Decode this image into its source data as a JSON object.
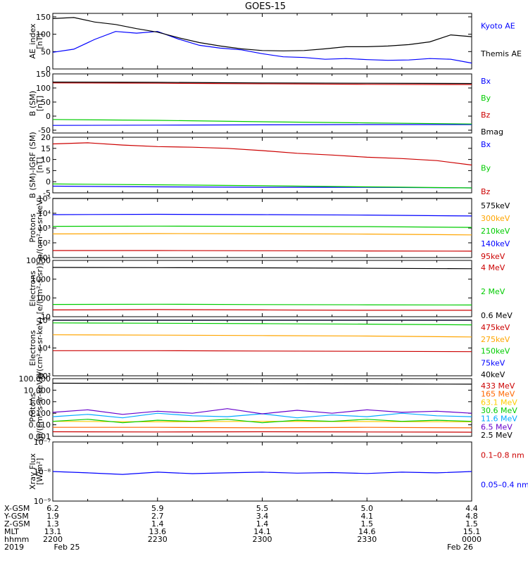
{
  "title": "GOES-15",
  "chart_data": [
    {
      "type": "line",
      "ylabel": [
        "AE_index",
        "[nT]"
      ],
      "scale": "linear",
      "ylim": [
        0,
        160
      ],
      "yticks": [
        {
          "v": 0,
          "label": "0"
        },
        {
          "v": 50,
          "label": "50"
        },
        {
          "v": 100,
          "label": "100"
        },
        {
          "v": 150,
          "label": "150"
        }
      ],
      "x_range": [
        "2019-02-25 22:00",
        "2019-02-26 00:00"
      ],
      "series": [
        {
          "name": "Kyoto AE",
          "color": "#0000ff",
          "x": [
            0,
            6,
            12,
            18,
            24,
            30,
            36,
            42,
            48,
            54,
            60,
            66,
            72,
            78,
            84,
            90,
            96,
            102,
            108,
            114,
            120
          ],
          "y": [
            48,
            57,
            85,
            108,
            103,
            108,
            86,
            68,
            60,
            55,
            44,
            35,
            33,
            28,
            30,
            27,
            25,
            26,
            30,
            28,
            17
          ]
        },
        {
          "name": "Themis AE",
          "color": "#000000",
          "x": [
            0,
            6,
            12,
            18,
            24,
            30,
            36,
            42,
            48,
            54,
            60,
            66,
            72,
            78,
            84,
            90,
            96,
            102,
            108,
            114,
            120
          ],
          "y": [
            145,
            148,
            135,
            128,
            116,
            106,
            90,
            76,
            66,
            58,
            53,
            52,
            53,
            58,
            64,
            64,
            66,
            70,
            78,
            98,
            93
          ]
        }
      ]
    },
    {
      "type": "line",
      "ylabel": [
        "B (SM)",
        "[nT]"
      ],
      "scale": "linear",
      "ylim": [
        -60,
        150
      ],
      "yticks": [
        {
          "v": -50,
          "label": "-50"
        },
        {
          "v": 0,
          "label": "0"
        },
        {
          "v": 50,
          "label": "50"
        },
        {
          "v": 100,
          "label": "100"
        },
        {
          "v": 150,
          "label": "150"
        }
      ],
      "series": [
        {
          "name": "Bx",
          "color": "#0000ff",
          "x": [
            0,
            30,
            60,
            90,
            120
          ],
          "y": [
            -33,
            -32,
            -31,
            -30,
            -30
          ]
        },
        {
          "name": "By",
          "color": "#00cc00",
          "x": [
            0,
            30,
            60,
            90,
            120
          ],
          "y": [
            -12,
            -15,
            -20,
            -24,
            -28
          ]
        },
        {
          "name": "Bz",
          "color": "#cc0000",
          "x": [
            0,
            30,
            60,
            90,
            120
          ],
          "y": [
            118,
            117,
            115,
            113,
            112
          ]
        },
        {
          "name": "Bmag",
          "color": "#000000",
          "x": [
            0,
            30,
            60,
            90,
            120
          ],
          "y": [
            121,
            120,
            118,
            117,
            116
          ]
        }
      ]
    },
    {
      "type": "line",
      "ylabel": [
        "B (SM)-IGRF (SM)",
        "[nT]"
      ],
      "scale": "linear",
      "ylim": [
        -5,
        20
      ],
      "yticks": [
        {
          "v": -5,
          "label": "-5"
        },
        {
          "v": 0,
          "label": "0"
        },
        {
          "v": 5,
          "label": "5"
        },
        {
          "v": 10,
          "label": "10"
        },
        {
          "v": 15,
          "label": "15"
        },
        {
          "v": 20,
          "label": "20"
        }
      ],
      "series": [
        {
          "name": "Bx",
          "color": "#0000ff",
          "x": [
            0,
            30,
            60,
            90,
            120
          ],
          "y": [
            -2,
            -2.3,
            -2.5,
            -2.5,
            -2.8
          ]
        },
        {
          "name": "By",
          "color": "#00cc00",
          "x": [
            0,
            30,
            60,
            90,
            120
          ],
          "y": [
            -1,
            -1.4,
            -1.8,
            -2.3,
            -2.8
          ]
        },
        {
          "name": "Bz",
          "color": "#cc0000",
          "x": [
            0,
            10,
            20,
            30,
            40,
            50,
            60,
            70,
            80,
            90,
            100,
            110,
            120
          ],
          "y": [
            17,
            17.5,
            16.5,
            15.8,
            15.5,
            15,
            14,
            12.8,
            12,
            11,
            10.4,
            9.5,
            7.5
          ]
        }
      ]
    },
    {
      "type": "line",
      "ylabel": [
        "Protons",
        "p/(cm²-s-sr-keV)"
      ],
      "scale": "log",
      "ylim": [
        10,
        100000
      ],
      "yticks": [
        {
          "v": 10,
          "label": "10¹"
        },
        {
          "v": 100,
          "label": "10²"
        },
        {
          "v": 1000,
          "label": "10³"
        },
        {
          "v": 10000,
          "label": "10⁴"
        },
        {
          "v": 100000,
          "label": "10⁵"
        }
      ],
      "series": [
        {
          "name": "575keV",
          "color": "#000000",
          "x": [
            0,
            120
          ],
          "y": [
            100000,
            100000
          ]
        },
        {
          "name": "300keV",
          "color": "#ffa500",
          "x": [
            0,
            30,
            60,
            90,
            120
          ],
          "y": [
            400,
            420,
            410,
            390,
            340
          ]
        },
        {
          "name": "210keV",
          "color": "#00cc00",
          "x": [
            0,
            30,
            60,
            90,
            120
          ],
          "y": [
            1300,
            1350,
            1300,
            1250,
            1100
          ]
        },
        {
          "name": "140keV",
          "color": "#0000ff",
          "x": [
            0,
            30,
            60,
            90,
            120
          ],
          "y": [
            8000,
            8500,
            8000,
            7500,
            6500
          ]
        },
        {
          "name": "95keV",
          "color": "#cc0000",
          "x": [
            0,
            30,
            60,
            90,
            120
          ],
          "y": [
            30,
            30,
            29,
            28,
            27
          ]
        }
      ]
    },
    {
      "type": "line",
      "ylabel": [
        "Electrons",
        "[e/(cm²-s-sr)]"
      ],
      "scale": "log",
      "ylim": [
        10,
        10000
      ],
      "yticks": [
        {
          "v": 10,
          "label": "10"
        },
        {
          "v": 100,
          "label": "100"
        },
        {
          "v": 1000,
          "label": "1000"
        },
        {
          "v": 10000,
          "label": "10000"
        }
      ],
      "series": [
        {
          "name": "4 MeV",
          "color": "#cc0000",
          "x": [
            0,
            30,
            60,
            90,
            120
          ],
          "y": [
            23,
            24,
            23,
            22,
            22
          ]
        },
        {
          "name": "2 MeV",
          "color": "#00cc00",
          "x": [
            0,
            30,
            60,
            90,
            120
          ],
          "y": [
            45,
            46,
            44,
            43,
            42
          ]
        },
        {
          "name": "0.6 MeV",
          "color": "#000000",
          "x": [
            0,
            30,
            60,
            90,
            120
          ],
          "y": [
            4200,
            4100,
            4000,
            3800,
            3600
          ]
        }
      ]
    },
    {
      "type": "line",
      "ylabel": [
        "Electrons",
        "e/(cm²-s-sr-keV)"
      ],
      "scale": "log",
      "ylim": [
        1000,
        100000
      ],
      "yticks": [
        {
          "v": 1000,
          "label": "10³"
        },
        {
          "v": 10000,
          "label": "10⁴"
        },
        {
          "v": 100000,
          "label": "10⁵"
        }
      ],
      "series": [
        {
          "name": "475keV",
          "color": "#cc0000",
          "x": [
            0,
            30,
            60,
            90,
            120
          ],
          "y": [
            8000,
            8000,
            7800,
            7600,
            7400
          ]
        },
        {
          "name": "275keV",
          "color": "#ffa500",
          "x": [
            0,
            30,
            60,
            90,
            120
          ],
          "y": [
            30000,
            29000,
            28000,
            27000,
            25000
          ]
        },
        {
          "name": "150keV",
          "color": "#00cc00",
          "x": [
            0,
            30,
            60,
            90,
            120
          ],
          "y": [
            80000,
            78000,
            75000,
            72000,
            68000
          ]
        },
        {
          "name": "75keV",
          "color": "#0000ff",
          "x": [
            0,
            120
          ],
          "y": [
            100000,
            100000
          ]
        },
        {
          "name": "40keV",
          "color": "#000000",
          "x": [
            0,
            120
          ],
          "y": [
            100000,
            100000
          ]
        }
      ]
    },
    {
      "type": "line",
      "ylabel": [
        "Protons",
        "[p/(cm²-s-sr-keV)]"
      ],
      "scale": "log",
      "ylim": [
        0.001,
        100
      ],
      "yticks": [
        {
          "v": 0.001,
          "label": "0.001"
        },
        {
          "v": 0.01,
          "label": "0.010"
        },
        {
          "v": 0.1,
          "label": "0.100"
        },
        {
          "v": 1,
          "label": "1.000"
        },
        {
          "v": 10,
          "label": "10.000"
        },
        {
          "v": 100,
          "label": "100.000"
        }
      ],
      "series": [
        {
          "name": "433 MeV",
          "color": "#cc0000",
          "x": [
            0,
            30,
            60,
            90,
            120
          ],
          "y": [
            0.0025,
            0.0024,
            0.0025,
            0.0024,
            0.0023
          ]
        },
        {
          "name": "165 MeV",
          "color": "#ff6600",
          "x": [
            0,
            30,
            60,
            90,
            120
          ],
          "y": [
            0.006,
            0.006,
            0.0055,
            0.006,
            0.0055
          ]
        },
        {
          "name": "63.1 MeV",
          "color": "#ffcc00",
          "x": [
            0,
            30,
            60,
            90,
            120
          ],
          "y": [
            0.02,
            0.018,
            0.02,
            0.019,
            0.018
          ]
        },
        {
          "name": "30.6 MeV",
          "color": "#00cc00",
          "x": [
            0,
            10,
            20,
            30,
            40,
            50,
            60,
            70,
            80,
            90,
            100,
            110,
            120
          ],
          "y": [
            0.02,
            0.03,
            0.015,
            0.025,
            0.02,
            0.03,
            0.015,
            0.025,
            0.02,
            0.03,
            0.02,
            0.025,
            0.02
          ]
        },
        {
          "name": "11.6 MeV",
          "color": "#00aaff",
          "x": [
            0,
            10,
            20,
            30,
            40,
            50,
            60,
            70,
            80,
            90,
            100,
            110,
            120
          ],
          "y": [
            0.05,
            0.08,
            0.04,
            0.1,
            0.06,
            0.05,
            0.09,
            0.04,
            0.07,
            0.05,
            0.1,
            0.06,
            0.05
          ]
        },
        {
          "name": "6.5 MeV",
          "color": "#6600cc",
          "x": [
            0,
            10,
            20,
            30,
            40,
            50,
            60,
            70,
            80,
            90,
            100,
            110,
            120
          ],
          "y": [
            0.12,
            0.2,
            0.08,
            0.15,
            0.1,
            0.25,
            0.09,
            0.18,
            0.1,
            0.2,
            0.12,
            0.15,
            0.1
          ]
        },
        {
          "name": "2.5 MeV",
          "color": "#000000",
          "x": [
            0,
            30,
            60,
            90,
            120
          ],
          "y": [
            40,
            38,
            36,
            35,
            33
          ]
        }
      ]
    },
    {
      "type": "line",
      "ylabel": [
        "Xray Flux",
        "[W/m²]"
      ],
      "scale": "log",
      "ylim": [
        1e-09,
        1e-07
      ],
      "yticks": [
        {
          "v": 1e-09,
          "label": "10⁻⁹"
        },
        {
          "v": 1e-08,
          "label": "10⁻⁸"
        },
        {
          "v": 1e-07,
          "label": "10⁻⁷"
        }
      ],
      "series": [
        {
          "name": "0.1–0.8 nm",
          "color": "#cc0000",
          "x": [],
          "y": []
        },
        {
          "name": "0.05–0.4 nm",
          "color": "#0000ff",
          "x": [
            0,
            10,
            20,
            30,
            40,
            50,
            60,
            70,
            80,
            90,
            100,
            110,
            120
          ],
          "y": [
            1e-08,
            9e-09,
            8e-09,
            9.5e-09,
            8.5e-09,
            9e-09,
            9.5e-09,
            8.8e-09,
            9.2e-09,
            8.6e-09,
            9.5e-09,
            9e-09,
            1e-08
          ]
        }
      ]
    }
  ],
  "footer": {
    "rows": [
      {
        "label": "X-GSM",
        "values": [
          "6.2",
          "5.9",
          "5.5",
          "5.0",
          "4.4"
        ]
      },
      {
        "label": "Y-GSM",
        "values": [
          "1.9",
          "2.7",
          "3.4",
          "4.1",
          "4.8"
        ]
      },
      {
        "label": "Z-GSM",
        "values": [
          "1.3",
          "1.4",
          "1.4",
          "1.5",
          "1.5"
        ]
      },
      {
        "label": "MLT",
        "values": [
          "13.1",
          "13.6",
          "14.1",
          "14.6",
          "15.1"
        ]
      },
      {
        "label": "hhmm",
        "values": [
          "2200",
          "2230",
          "2300",
          "2330",
          "0000"
        ]
      },
      {
        "label": "2019",
        "values": [
          "Feb 25",
          "",
          "",
          "",
          "Feb 26"
        ]
      }
    ]
  }
}
